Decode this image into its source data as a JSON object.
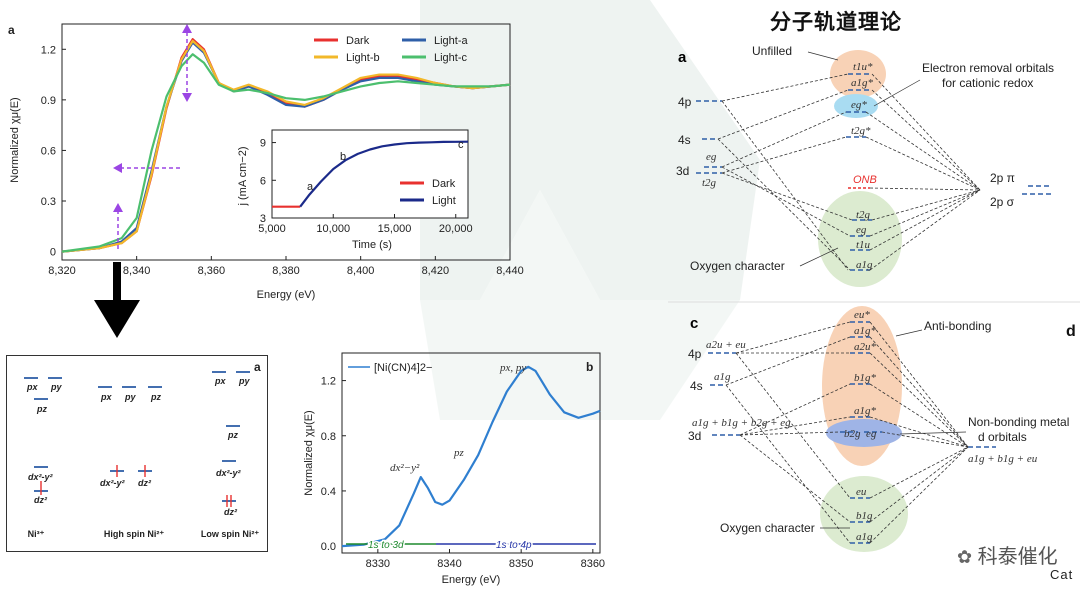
{
  "header": {
    "title_cn": "分子轨道理论"
  },
  "watermark": {
    "brand": "科泰催化",
    "cut_text": "Cat",
    "panel_letter_d": "d"
  },
  "chart_main": {
    "panel_label": "a",
    "xlabel": "Energy (eV)",
    "ylabel": "Normalized χμ(E)",
    "xticks": [
      "8,320",
      "8,340",
      "8,360",
      "8,380",
      "8,400",
      "8,420",
      "8,440"
    ],
    "yticks": [
      "0",
      "0.3",
      "0.6",
      "0.9",
      "1.2"
    ],
    "legend": [
      "Dark",
      "Light-a",
      "Light-b",
      "Light-c"
    ],
    "colors": {
      "Dark": "#e8312f",
      "Light-a": "#2f5fa8",
      "Light-b": "#f2b82a",
      "Light-c": "#4cbf6e"
    }
  },
  "chart_data": [
    {
      "type": "line",
      "title": "",
      "xlabel": "Energy (eV)",
      "ylabel": "Normalized χμ(E)",
      "xlim": [
        8320,
        8440
      ],
      "ylim": [
        -0.05,
        1.35
      ],
      "series": [
        {
          "name": "Dark",
          "x": [
            8320,
            8330,
            8336,
            8340,
            8344,
            8348,
            8352,
            8355,
            8358,
            8362,
            8366,
            8370,
            8375,
            8380,
            8385,
            8390,
            8395,
            8400,
            8405,
            8410,
            8415,
            8420,
            8425,
            8430,
            8435,
            8440
          ],
          "y": [
            0.0,
            0.02,
            0.05,
            0.12,
            0.45,
            0.85,
            1.15,
            1.26,
            1.2,
            1.0,
            0.95,
            0.98,
            0.94,
            0.88,
            0.86,
            0.9,
            0.96,
            1.02,
            1.04,
            1.04,
            1.02,
            1.0,
            0.98,
            0.97,
            0.98,
            0.99
          ]
        },
        {
          "name": "Light-a",
          "x": [
            8320,
            8330,
            8336,
            8340,
            8344,
            8348,
            8352,
            8355,
            8358,
            8362,
            8366,
            8370,
            8375,
            8380,
            8385,
            8390,
            8395,
            8400,
            8405,
            8410,
            8415,
            8420,
            8425,
            8430,
            8435,
            8440
          ],
          "y": [
            0.0,
            0.02,
            0.06,
            0.14,
            0.48,
            0.86,
            1.13,
            1.24,
            1.18,
            1.0,
            0.95,
            0.98,
            0.93,
            0.87,
            0.86,
            0.9,
            0.96,
            1.01,
            1.03,
            1.03,
            1.01,
            0.99,
            0.98,
            0.97,
            0.98,
            0.99
          ]
        },
        {
          "name": "Light-b",
          "x": [
            8320,
            8330,
            8336,
            8340,
            8344,
            8348,
            8352,
            8355,
            8358,
            8362,
            8366,
            8370,
            8375,
            8380,
            8385,
            8390,
            8395,
            8400,
            8405,
            8410,
            8415,
            8420,
            8425,
            8430,
            8435,
            8440
          ],
          "y": [
            0.0,
            0.02,
            0.05,
            0.12,
            0.46,
            0.86,
            1.14,
            1.25,
            1.19,
            1.0,
            0.96,
            0.99,
            0.95,
            0.89,
            0.87,
            0.91,
            0.97,
            1.03,
            1.05,
            1.05,
            1.03,
            1.0,
            0.98,
            0.97,
            0.98,
            0.99
          ]
        },
        {
          "name": "Light-c",
          "x": [
            8320,
            8330,
            8336,
            8340,
            8344,
            8348,
            8352,
            8355,
            8358,
            8362,
            8366,
            8370,
            8375,
            8380,
            8385,
            8390,
            8395,
            8400,
            8405,
            8410,
            8415,
            8420,
            8425,
            8430,
            8435,
            8440
          ],
          "y": [
            0.0,
            0.03,
            0.08,
            0.2,
            0.6,
            0.92,
            1.1,
            1.17,
            1.12,
            0.99,
            0.95,
            0.96,
            0.94,
            0.91,
            0.9,
            0.92,
            0.95,
            0.98,
            1.0,
            1.01,
            1.0,
            0.99,
            0.98,
            0.98,
            0.98,
            0.99
          ]
        }
      ],
      "annotations": []
    },
    {
      "type": "line",
      "title": "inset",
      "xlabel": "Time (s)",
      "ylabel": "j (mA cm−2)",
      "xlim": [
        5000,
        21000
      ],
      "ylim": [
        3,
        10
      ],
      "xticks": [
        "5,000",
        "10,000",
        "15,000",
        "20,000"
      ],
      "yticks": [
        "3",
        "6",
        "9"
      ],
      "series": [
        {
          "name": "Dark",
          "x": [
            5000,
            7300
          ],
          "y": [
            3.9,
            3.9
          ]
        },
        {
          "name": "Light",
          "x": [
            7300,
            8000,
            9000,
            10000,
            11000,
            12000,
            13000,
            14000,
            15000,
            16000,
            17000,
            18000,
            19000,
            20000,
            21000
          ],
          "y": [
            3.9,
            4.8,
            5.9,
            6.9,
            7.6,
            8.1,
            8.45,
            8.7,
            8.85,
            8.95,
            9.0,
            9.02,
            9.05,
            9.06,
            9.07
          ]
        }
      ],
      "point_labels": [
        "a",
        "b",
        "c"
      ],
      "legend": [
        "Dark",
        "Light"
      ]
    },
    {
      "type": "line",
      "title": "[Ni(CN)4]2−",
      "xlabel": "Energy (eV)",
      "ylabel": "Normalized χμ(E)",
      "xlim": [
        8325,
        8361
      ],
      "ylim": [
        -0.05,
        1.4
      ],
      "xticks": [
        "8330",
        "8340",
        "8350",
        "8360"
      ],
      "yticks": [
        "0.0",
        "0.4",
        "0.8",
        "1.2"
      ],
      "series": [
        {
          "name": "[Ni(CN)4]2−",
          "x": [
            8325,
            8328,
            8331,
            8333,
            8335,
            8336,
            8337,
            8338,
            8339,
            8340,
            8342,
            8344,
            8346,
            8348,
            8350,
            8351,
            8352,
            8354,
            8356,
            8358,
            8360,
            8361
          ],
          "y": [
            0.0,
            0.01,
            0.05,
            0.15,
            0.38,
            0.5,
            0.42,
            0.32,
            0.3,
            0.33,
            0.48,
            0.66,
            0.9,
            1.12,
            1.27,
            1.3,
            1.27,
            1.1,
            0.97,
            0.93,
            0.96,
            0.98
          ]
        }
      ],
      "annotations": [
        "dx²−y²",
        "pz",
        "px, py",
        "1s to 3d",
        "1s to 4p"
      ]
    }
  ],
  "panel_bL": {
    "label": "a",
    "columns": [
      "Ni³⁺",
      "High spin Ni²⁺",
      "Low spin Ni²⁺"
    ],
    "orbitals": {
      "px": "px",
      "py": "py",
      "pz": "pz",
      "dx2": "dx²-y²",
      "dz2": "dz²"
    }
  },
  "panel_bR": {
    "label": "b"
  },
  "mo_top": {
    "label": "a",
    "unfilled": "Unfilled",
    "removal": "Electron removal orbitals for cationic redox",
    "removal_line1": "Electron removal orbitals",
    "removal_line2": "for cationic redox",
    "oxygen": "Oxygen character",
    "onb": "ONB",
    "left": [
      "4p",
      "4s",
      "3d"
    ],
    "eg": "eg",
    "t2g": "t2g",
    "right": [
      "2p π",
      "2p σ"
    ],
    "levels": [
      "t1u*",
      "a1g*",
      "eg*",
      "t2g*",
      "t2g",
      "eg",
      "t1u",
      "a1g"
    ]
  },
  "mo_bottom": {
    "label": "c",
    "anti": "Anti-bonding",
    "nonbond1": "Non-bonding metal",
    "nonbond2": "d orbitals",
    "oxygen": "Oxygen character",
    "left": [
      "4p",
      "4s",
      "3d"
    ],
    "left_sub": [
      "a2u + eu",
      "a1g",
      "a1g + b1g + b2g + eg"
    ],
    "right": "a1g + b1g + eu",
    "levels": [
      "eu*",
      "a1g*",
      "a2u*",
      "b1g*",
      "a1g*",
      "b2g",
      "eg",
      "eu",
      "b1g",
      "a1g"
    ]
  }
}
